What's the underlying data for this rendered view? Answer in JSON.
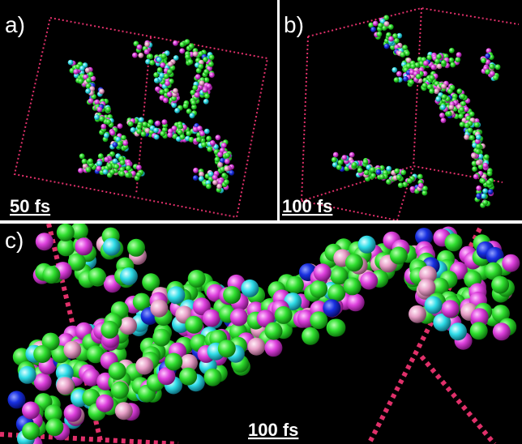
{
  "panels": [
    {
      "label": "a)",
      "time": "50 fs"
    },
    {
      "label": "b)",
      "time": "100 fs"
    },
    {
      "label": "c)",
      "time": "100 fs"
    }
  ]
}
